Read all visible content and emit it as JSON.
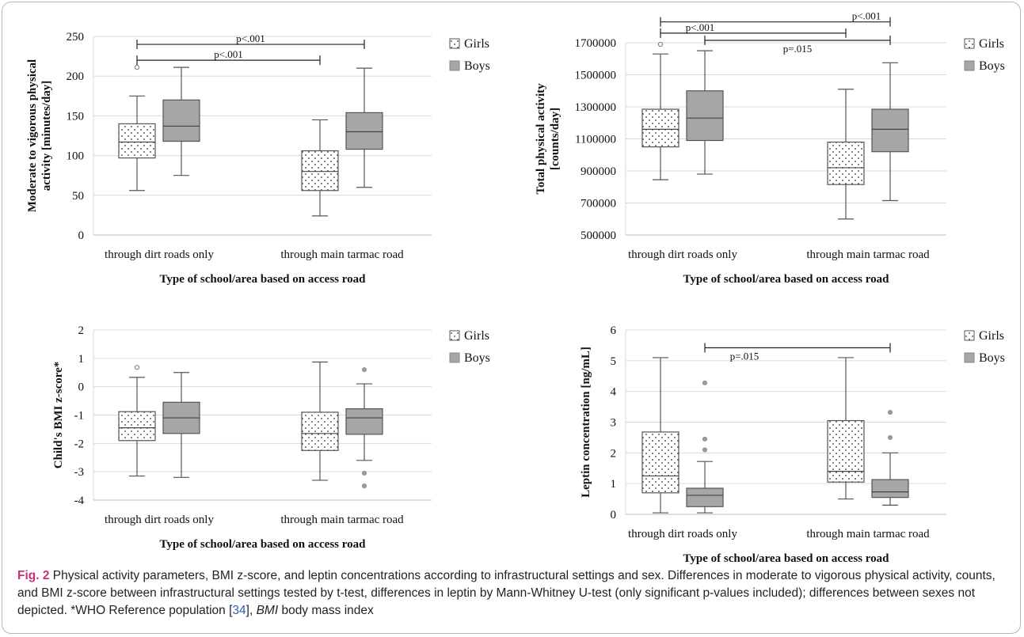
{
  "colors": {
    "girls_fill": "#ffffff",
    "boys_fill": "#a6a6a6",
    "grid": "#d9d9d9",
    "line": "#555555",
    "text": "#111111",
    "caption_label": "#c7317b",
    "caption_link": "#2c5fb8"
  },
  "legend": {
    "girls": "Girls",
    "boys": "Boys"
  },
  "caption": {
    "label": "Fig. 2",
    "part1": "  Physical activity parameters, BMI z-score, and leptin concentrations according to infrastructural settings and sex. Differences in moderate to vigorous physical activity, counts, and BMI z-score between infrastructural settings tested by t-test, differences in leptin by Mann-Whitney U-test (only significant p-values included); differences between sexes not depicted. *WHO Reference population [",
    "ref": "34",
    "part2": "], ",
    "abbr": "BMI",
    "part3": " body mass index"
  },
  "chart_data": [
    {
      "type": "box",
      "ylabel": "Moderate to vigorous physical activity [minutes/day]",
      "xlabel": "Type of school/area based on access road",
      "categories": [
        "through dirt roads only",
        "through main tarmac road"
      ],
      "ylim": [
        0,
        250
      ],
      "yticks": [
        0,
        50,
        100,
        150,
        200,
        250
      ],
      "tick_labels": [
        "0",
        "50",
        "100",
        "150",
        "200",
        "250"
      ],
      "grid": true,
      "legend_position": "right",
      "series": [
        {
          "name": "Girls",
          "boxes": [
            {
              "min": 56,
              "q1": 97,
              "median": 117,
              "q3": 140,
              "max": 175,
              "outliers": [
                211
              ]
            },
            {
              "min": 24,
              "q1": 56,
              "median": 80,
              "q3": 106,
              "max": 145,
              "outliers": []
            }
          ]
        },
        {
          "name": "Boys",
          "boxes": [
            {
              "min": 75,
              "q1": 118,
              "median": 137,
              "q3": 170,
              "max": 211,
              "outliers": []
            },
            {
              "min": 60,
              "q1": 108,
              "median": 130,
              "q3": 154,
              "max": 210,
              "outliers": []
            }
          ]
        }
      ],
      "annotations": [
        {
          "text": "p<.001",
          "from": [
            0,
            "Girls"
          ],
          "to": [
            1,
            "Boys"
          ],
          "y": 240
        },
        {
          "text": "p<.001",
          "from": [
            0,
            "Girls"
          ],
          "to": [
            1,
            "Girls"
          ],
          "y": 220
        }
      ]
    },
    {
      "type": "box",
      "ylabel": "Total physical activity [counts/day]",
      "xlabel": "Type of school/area based on access road",
      "categories": [
        "through dirt roads only",
        "through main tarmac road"
      ],
      "ylim": [
        500000,
        1700000
      ],
      "yticks": [
        500000,
        700000,
        900000,
        1100000,
        1300000,
        1500000,
        1700000
      ],
      "tick_labels": [
        "500000",
        "700000",
        "900000",
        "1100000",
        "1300000",
        "1500000",
        "1700000"
      ],
      "grid": true,
      "legend_position": "right",
      "series": [
        {
          "name": "Girls",
          "boxes": [
            {
              "min": 845000,
              "q1": 1050000,
              "median": 1160000,
              "q3": 1285000,
              "max": 1630000,
              "outliers": [
                1690000
              ]
            },
            {
              "min": 600000,
              "q1": 815000,
              "median": 920000,
              "q3": 1080000,
              "max": 1410000,
              "outliers": []
            }
          ]
        },
        {
          "name": "Boys",
          "boxes": [
            {
              "min": 880000,
              "q1": 1090000,
              "median": 1230000,
              "q3": 1400000,
              "max": 1650000,
              "outliers": []
            },
            {
              "min": 715000,
              "q1": 1020000,
              "median": 1160000,
              "q3": 1285000,
              "max": 1575000,
              "outliers": []
            }
          ]
        }
      ],
      "annotations": [
        {
          "text": "p<.001",
          "from": [
            0,
            "Girls"
          ],
          "to": [
            1,
            "Boys"
          ],
          "y": 1830000,
          "label_x": "right"
        },
        {
          "text": "p<.001",
          "from": [
            0,
            "Girls"
          ],
          "to": [
            1,
            "Girls"
          ],
          "y": 1760000,
          "label_x": "left"
        },
        {
          "text": "p=.015",
          "from": [
            0,
            "Boys"
          ],
          "to": [
            1,
            "Boys"
          ],
          "y": 1715000,
          "label_x": "middle",
          "label_below": true
        }
      ]
    },
    {
      "type": "box",
      "ylabel": "Child's BMI z-score*",
      "xlabel": "Type of school/area based on access road",
      "categories": [
        "through dirt roads only",
        "through main tarmac road"
      ],
      "ylim": [
        -4,
        2
      ],
      "yticks": [
        -4,
        -3,
        -2,
        -1,
        0,
        1,
        2
      ],
      "tick_labels": [
        "-4",
        "-3",
        "-2",
        "-1",
        "0",
        "1",
        "2"
      ],
      "grid": true,
      "legend_position": "right",
      "series": [
        {
          "name": "Girls",
          "boxes": [
            {
              "min": -3.15,
              "q1": -1.9,
              "median": -1.45,
              "q3": -0.88,
              "max": 0.33,
              "outliers": [
                0.68
              ]
            },
            {
              "min": -3.3,
              "q1": -2.25,
              "median": -1.65,
              "q3": -0.9,
              "max": 0.87,
              "outliers": []
            }
          ]
        },
        {
          "name": "Boys",
          "boxes": [
            {
              "min": -3.2,
              "q1": -1.65,
              "median": -1.1,
              "q3": -0.55,
              "max": 0.5,
              "outliers": []
            },
            {
              "min": -2.6,
              "q1": -1.68,
              "median": -1.1,
              "q3": -0.78,
              "max": 0.1,
              "outliers": [
                0.6,
                -3.05,
                -3.5
              ]
            }
          ]
        }
      ],
      "annotations": []
    },
    {
      "type": "box",
      "ylabel": "Leptin concentration [ng/mL]",
      "xlabel": "Type of school/area based on access road",
      "categories": [
        "through dirt roads only",
        "through main tarmac road"
      ],
      "ylim": [
        0,
        6
      ],
      "yticks": [
        0,
        1,
        2,
        3,
        4,
        5,
        6
      ],
      "tick_labels": [
        "0",
        "1",
        "2",
        "3",
        "4",
        "5",
        "6"
      ],
      "grid": true,
      "legend_position": "right",
      "series": [
        {
          "name": "Girls",
          "boxes": [
            {
              "min": 0.05,
              "q1": 0.7,
              "median": 1.25,
              "q3": 2.68,
              "max": 5.1,
              "outliers": []
            },
            {
              "min": 0.5,
              "q1": 1.05,
              "median": 1.4,
              "q3": 3.05,
              "max": 5.1,
              "outliers": []
            }
          ]
        },
        {
          "name": "Boys",
          "boxes": [
            {
              "min": 0.05,
              "q1": 0.25,
              "median": 0.62,
              "q3": 0.85,
              "max": 1.72,
              "outliers": [
                2.1,
                2.45,
                4.28
              ]
            },
            {
              "min": 0.3,
              "q1": 0.55,
              "median": 0.73,
              "q3": 1.13,
              "max": 2.0,
              "outliers": [
                2.5,
                3.32
              ]
            }
          ]
        }
      ],
      "annotations": [
        {
          "text": "p=.015",
          "from": [
            0,
            "Boys"
          ],
          "to": [
            1,
            "Boys"
          ],
          "y": 5.42,
          "label_x": "left",
          "label_below": true
        }
      ]
    }
  ]
}
